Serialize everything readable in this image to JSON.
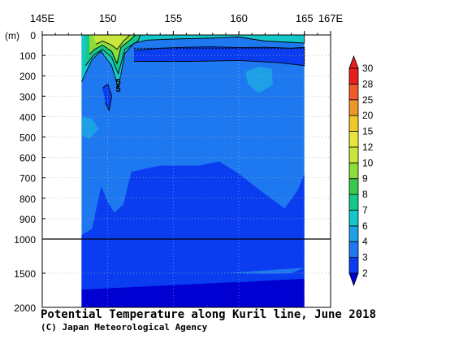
{
  "chart_data": {
    "type": "heatmap",
    "title": "Potential Temperature along Kuril line, June 2018",
    "credit": "(C) Japan Meteorological Agency",
    "x_axis": {
      "ticks": [
        "145E",
        "150",
        "155",
        "160",
        "165",
        "167E"
      ],
      "range": [
        145,
        167
      ],
      "data_extent": [
        148,
        165
      ]
    },
    "y_axis": {
      "unit_label": "(m)",
      "upper_ticks": [
        "0",
        "100",
        "200",
        "300",
        "400",
        "500",
        "600",
        "700",
        "800",
        "900",
        "1000"
      ],
      "lower_ticks": [
        "1000",
        "1500",
        "2000"
      ],
      "upper_range": [
        0,
        1000
      ],
      "lower_range": [
        1000,
        2000
      ]
    },
    "contour_labels": [
      "5",
      "5"
    ],
    "colorbar": {
      "labels": [
        "2",
        "3",
        "4",
        "6",
        "7",
        "8",
        "9",
        "10",
        "12",
        "15",
        "20",
        "25",
        "28",
        "30"
      ],
      "colors": [
        "#0000d2",
        "#0a3cf0",
        "#1e78f0",
        "#1ea0e6",
        "#14c8c8",
        "#14c88c",
        "#3cc850",
        "#8cdc3c",
        "#c8e63c",
        "#e6e63c",
        "#f0c828",
        "#f09628",
        "#f05a28",
        "#e61e1e"
      ]
    },
    "regions": [
      {
        "name": "below-2",
        "color": "#0000d2",
        "x": [
          148,
          149.5,
          152,
          155,
          158,
          160,
          163,
          165,
          165,
          148
        ],
        "depth": [
          1740,
          1700,
          1690,
          1650,
          1620,
          1630,
          1600,
          1580,
          2000,
          2000
        ]
      },
      {
        "name": "2-3-deep",
        "color": "#0a3cf0",
        "x": [
          148,
          149,
          151,
          153,
          155,
          158,
          160,
          162,
          164,
          165,
          165,
          148
        ],
        "depth": [
          1640,
          1610,
          1600,
          1560,
          1520,
          1490,
          1500,
          1510,
          1500,
          1420,
          1580,
          1740
        ]
      },
      {
        "name": "3-4",
        "color": "#0a3cf0",
        "x": [
          148,
          148.8,
          149.5,
          150,
          150.5,
          151.2,
          151.8,
          152.5,
          154,
          157,
          158.5,
          160,
          162,
          163.5,
          164.5,
          165,
          165,
          148
        ],
        "depth": [
          980,
          950,
          740,
          820,
          870,
          830,
          670,
          660,
          640,
          640,
          620,
          680,
          780,
          850,
          760,
          680,
          1420,
          1640
        ]
      },
      {
        "name": "subsurface-3",
        "color": "#0a3cf0",
        "x": [
          152,
          154,
          156,
          158,
          160,
          162,
          164,
          165,
          165,
          163,
          160,
          156,
          152
        ],
        "depth": [
          75,
          65,
          60,
          58,
          62,
          60,
          65,
          60,
          150,
          135,
          125,
          130,
          130
        ]
      },
      {
        "name": "core-3",
        "color": "#0a3cf0",
        "x": [
          149.6,
          150,
          150.3,
          150.1,
          149.8
        ],
        "depth": [
          260,
          240,
          300,
          370,
          330
        ]
      },
      {
        "name": "warm-4-6",
        "color": "#1ea0e6",
        "x": [
          160.5,
          161.5,
          162.5,
          162.6,
          161.5,
          160.7
        ],
        "depth": [
          180,
          155,
          165,
          245,
          285,
          240
        ]
      },
      {
        "name": "warm-4-6-west",
        "color": "#1ea0e6",
        "x": [
          148,
          148.8,
          149.3,
          148.6,
          148
        ],
        "depth": [
          400,
          410,
          460,
          510,
          490
        ]
      },
      {
        "name": "surface-6-7",
        "color": "#14c8c8",
        "x": [
          148,
          149,
          150,
          150.5,
          151,
          152,
          153,
          156,
          159,
          162,
          165,
          165,
          162,
          160,
          158,
          155,
          153,
          152,
          151.3,
          150.8,
          150.3,
          149.5,
          148.8,
          148
        ],
        "depth": [
          0,
          0,
          0,
          0,
          0,
          0,
          0,
          0,
          0,
          0,
          0,
          40,
          30,
          10,
          15,
          20,
          25,
          40,
          90,
          260,
          150,
          80,
          120,
          230
        ]
      },
      {
        "name": "surface-7-8",
        "color": "#14c88c",
        "x": [
          148.3,
          149.6,
          150.3,
          151.5,
          152.5,
          152.3,
          151.3,
          150.8,
          150.3,
          149.6,
          148.9,
          148.3
        ],
        "depth": [
          0,
          0,
          0,
          0,
          0,
          30,
          70,
          190,
          110,
          70,
          100,
          150
        ]
      },
      {
        "name": "surface-8-10",
        "color": "#8cdc3c",
        "x": [
          148.6,
          149.6,
          150.3,
          151.3,
          152.1,
          151.7,
          151,
          150.7,
          150.3,
          149.6,
          149,
          148.6
        ],
        "depth": [
          0,
          0,
          0,
          0,
          0,
          25,
          60,
          140,
          80,
          50,
          70,
          95
        ]
      },
      {
        "name": "surface-10-12",
        "color": "#c8e63c",
        "x": [
          148.9,
          149.6,
          150.2,
          151.1,
          151.7,
          151.2,
          150.7,
          150.3,
          149.6,
          149.1
        ],
        "depth": [
          0,
          0,
          0,
          0,
          0,
          30,
          70,
          50,
          30,
          45
        ]
      }
    ]
  }
}
